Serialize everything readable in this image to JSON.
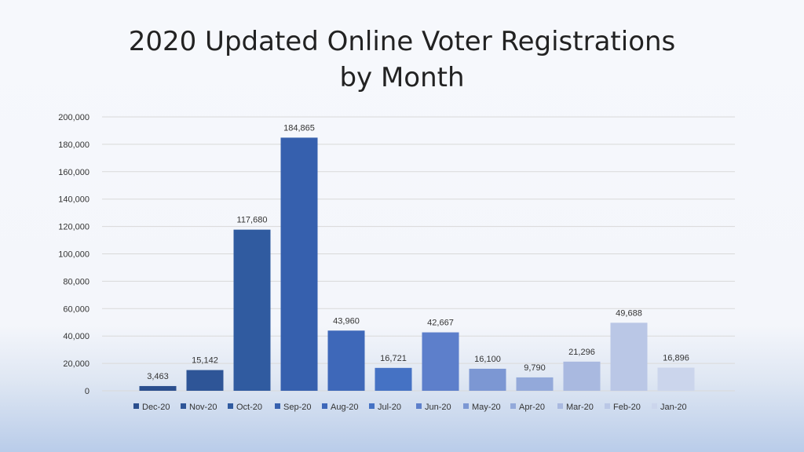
{
  "chart_data": {
    "type": "bar",
    "title_lines": [
      "2020 Updated Online Voter Registrations",
      "by Month"
    ],
    "categories": [
      "Dec-20",
      "Nov-20",
      "Oct-20",
      "Sep-20",
      "Aug-20",
      "Jul-20",
      "Jun-20",
      "May-20",
      "Apr-20",
      "Mar-20",
      "Feb-20",
      "Jan-20"
    ],
    "values": [
      3463,
      15142,
      117680,
      184865,
      43960,
      16721,
      42667,
      16100,
      9790,
      21296,
      49688,
      16896
    ],
    "value_labels": [
      "3,463",
      "15,142",
      "117,680",
      "184,865",
      "43,960",
      "16,721",
      "42,667",
      "16,100",
      "9,790",
      "21,296",
      "49,688",
      "16,896"
    ],
    "colors": [
      "#2b4f8e",
      "#2e5597",
      "#305ba0",
      "#3660ae",
      "#3e68b9",
      "#4572c4",
      "#5d7fcb",
      "#7c97d3",
      "#93a9da",
      "#a9b9e0",
      "#bac7e6",
      "#cbd5ec"
    ],
    "y_ticks": [
      "0",
      "20,000",
      "40,000",
      "60,000",
      "80,000",
      "100,000",
      "120,000",
      "140,000",
      "160,000",
      "180,000",
      "200,000"
    ],
    "ylim": [
      0,
      200000
    ],
    "y_step": 20000,
    "grid": true,
    "legend_placement": "bottom",
    "xlabel": "",
    "ylabel": ""
  }
}
